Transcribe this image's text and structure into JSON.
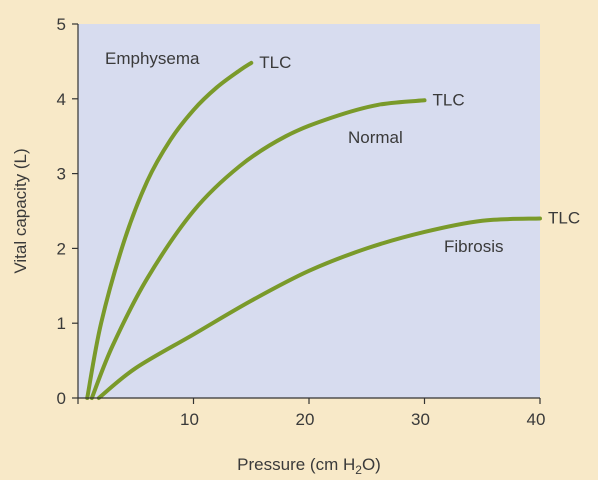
{
  "colors": {
    "page_background": "#f8e9c8",
    "plot_background": "#d7dcef",
    "curve": "#7a9a2a",
    "axis": "#333333",
    "text": "#3a3a3a"
  },
  "chart_data": {
    "type": "line",
    "title": "",
    "xlabel": "Pressure (cm H",
    "xlabel_subscript": "2",
    "xlabel_suffix": "O)",
    "ylabel": "Vital capacity (L)",
    "xlim": [
      0,
      40
    ],
    "ylim": [
      0,
      5
    ],
    "x_ticks": [
      0,
      10,
      20,
      30,
      40
    ],
    "x_tick_labels": [
      "",
      "10",
      "20",
      "30",
      "40"
    ],
    "y_ticks": [
      0,
      1,
      2,
      3,
      4,
      5
    ],
    "y_tick_labels": [
      "0",
      "1",
      "2",
      "3",
      "4",
      "5"
    ],
    "grid": false,
    "legend": "none",
    "series": [
      {
        "name": "Emphysema",
        "endpoint_label": "TLC",
        "x": [
          0.8,
          2,
          4,
          6,
          8,
          10,
          12,
          14,
          15
        ],
        "y": [
          0,
          1.0,
          2.1,
          2.9,
          3.45,
          3.85,
          4.15,
          4.38,
          4.48
        ]
      },
      {
        "name": "Normal",
        "endpoint_label": "TLC",
        "x": [
          1.2,
          3,
          6,
          10,
          14,
          18,
          22,
          26,
          30
        ],
        "y": [
          0,
          0.7,
          1.6,
          2.5,
          3.1,
          3.5,
          3.75,
          3.92,
          3.98
        ]
      },
      {
        "name": "Fibrosis",
        "endpoint_label": "TLC",
        "x": [
          1.8,
          5,
          10,
          15,
          20,
          25,
          30,
          35,
          40
        ],
        "y": [
          0,
          0.4,
          0.85,
          1.3,
          1.7,
          2.0,
          2.22,
          2.37,
          2.4
        ]
      }
    ]
  }
}
